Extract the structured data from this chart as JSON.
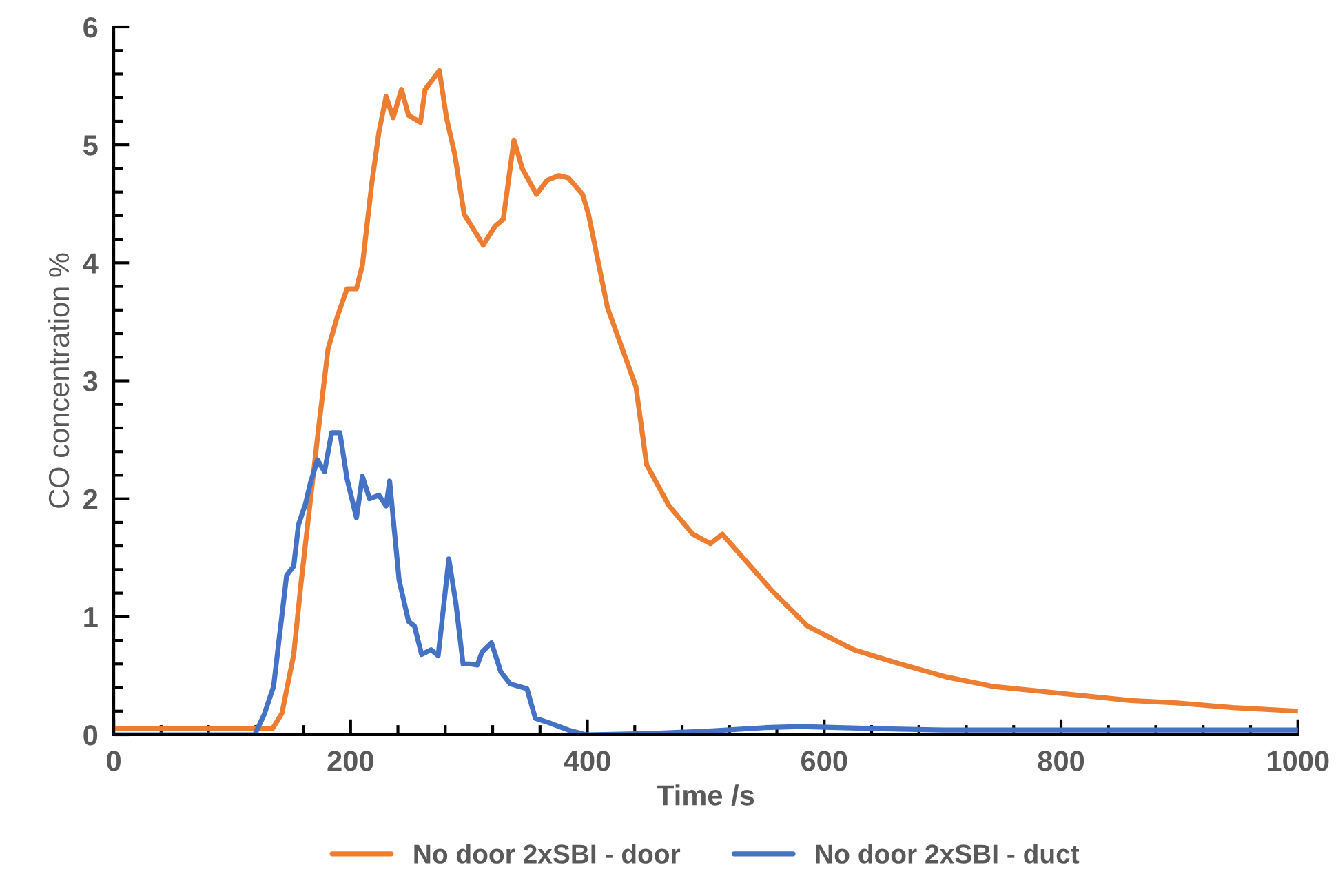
{
  "chart_data": {
    "type": "line",
    "xlabel": "Time /s",
    "ylabel": "CO concentration %",
    "xlim": [
      0,
      1000
    ],
    "xticks": [
      0,
      200,
      400,
      600,
      800,
      1000
    ],
    "ylim": [
      0,
      6
    ],
    "yticks": [
      0,
      1,
      2,
      3,
      4,
      5,
      6
    ],
    "grid": false,
    "legend": "bottom",
    "marker": "none",
    "line_style": "solid",
    "series": [
      {
        "name": "No door 2xSBI - door",
        "color": "#ed7d31",
        "x": [
          0,
          60,
          125,
          134,
          142,
          152,
          158,
          166,
          173,
          181,
          189,
          197,
          205,
          210,
          218,
          224,
          230,
          236,
          243,
          249,
          259,
          263,
          275,
          281,
          288,
          296,
          306,
          312,
          322,
          329,
          338,
          345,
          357,
          366,
          376,
          384,
          396,
          401,
          417,
          431,
          441,
          450,
          469,
          489,
          504,
          514,
          535,
          555,
          586,
          625,
          664,
          703,
          742,
          781,
          820,
          859,
          898,
          945,
          1000
        ],
        "values": [
          0.05,
          0.05,
          0.05,
          0.05,
          0.18,
          0.68,
          1.27,
          1.98,
          2.6,
          3.27,
          3.55,
          3.78,
          3.78,
          3.98,
          4.68,
          5.11,
          5.41,
          5.23,
          5.47,
          5.25,
          5.19,
          5.47,
          5.63,
          5.23,
          4.92,
          4.41,
          4.25,
          4.15,
          4.31,
          4.37,
          5.04,
          4.8,
          4.58,
          4.7,
          4.74,
          4.72,
          4.58,
          4.41,
          3.62,
          3.23,
          2.95,
          2.29,
          1.94,
          1.7,
          1.62,
          1.7,
          1.46,
          1.23,
          0.92,
          0.72,
          0.6,
          0.49,
          0.41,
          0.37,
          0.33,
          0.29,
          0.27,
          0.23,
          0.2
        ]
      },
      {
        "name": "No door 2xSBI - duct",
        "color": "#4472c4",
        "x": [
          0,
          119,
          127,
          135,
          140,
          146,
          152,
          156,
          162,
          166,
          172,
          178,
          184,
          191,
          197,
          205,
          210,
          216,
          224,
          230,
          233,
          241,
          249,
          254,
          260,
          268,
          274,
          283,
          289,
          295,
          301,
          307,
          311,
          319,
          327,
          335,
          349,
          356,
          368,
          384,
          399,
          450,
          500,
          550,
          580,
          650,
          700,
          800,
          900,
          1000
        ],
        "values": [
          0.0,
          0.0,
          0.17,
          0.41,
          0.84,
          1.35,
          1.43,
          1.78,
          1.96,
          2.13,
          2.33,
          2.23,
          2.56,
          2.56,
          2.17,
          1.84,
          2.19,
          2.0,
          2.03,
          1.94,
          2.15,
          1.31,
          0.96,
          0.92,
          0.68,
          0.72,
          0.67,
          1.49,
          1.11,
          0.6,
          0.6,
          0.59,
          0.7,
          0.78,
          0.53,
          0.43,
          0.39,
          0.14,
          0.1,
          0.04,
          0.0,
          0.01,
          0.03,
          0.06,
          0.07,
          0.05,
          0.04,
          0.04,
          0.04,
          0.04
        ]
      }
    ]
  }
}
